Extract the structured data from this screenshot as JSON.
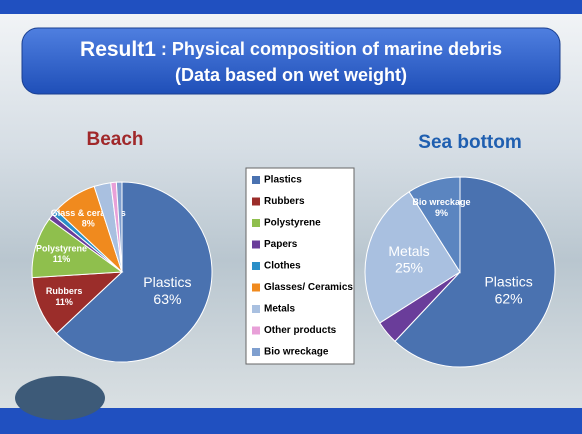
{
  "slide": {
    "title_bold": "Result1",
    "title_rest": " : Physical composition of marine debris",
    "subtitle": "(Data based on wet weight)"
  },
  "legend": {
    "labels": [
      "Plastics",
      "Rubbers",
      "Polystyrene",
      "Papers",
      "Clothes",
      "Glasses/ Ceramics",
      "Metals",
      "Other products",
      "Bio wreckage"
    ],
    "colors": [
      "#4a72b0",
      "#9b2d2a",
      "#8fbf4d",
      "#6a3d9a",
      "#2a8fc8",
      "#f08a1e",
      "#a9c0e0",
      "#e8a0d8",
      "#7f9fcf"
    ]
  },
  "chart_data": [
    {
      "type": "pie",
      "title": "Beach",
      "title_color": "#a0282a",
      "categories": [
        "Plastics",
        "Rubbers",
        "Polystyrene",
        null,
        null,
        "Glass & ceramics",
        null,
        null,
        null
      ],
      "values": [
        63,
        11,
        11,
        1,
        1,
        8,
        3,
        1,
        1
      ],
      "value_labels": [
        "63%",
        "11%",
        "11%",
        null,
        null,
        "8%",
        null,
        null,
        null
      ],
      "colors": [
        "#4a72b0",
        "#9b2d2a",
        "#8fbf4d",
        "#6a3d9a",
        "#2a8fc8",
        "#f08a1e",
        "#a9c0e0",
        "#e8a0d8",
        "#7f9fcf"
      ]
    },
    {
      "type": "pie",
      "title": "Sea bottom",
      "title_color": "#1f5fb0",
      "categories": [
        "Plastics",
        null,
        "Metals",
        "Bio wreckage"
      ],
      "values": [
        62,
        4,
        25,
        9
      ],
      "value_labels": [
        "62%",
        null,
        "25%",
        "9%"
      ],
      "colors": [
        "#4a72b0",
        "#6a3d9a",
        "#a9c0e0",
        "#5b85c0"
      ]
    }
  ]
}
